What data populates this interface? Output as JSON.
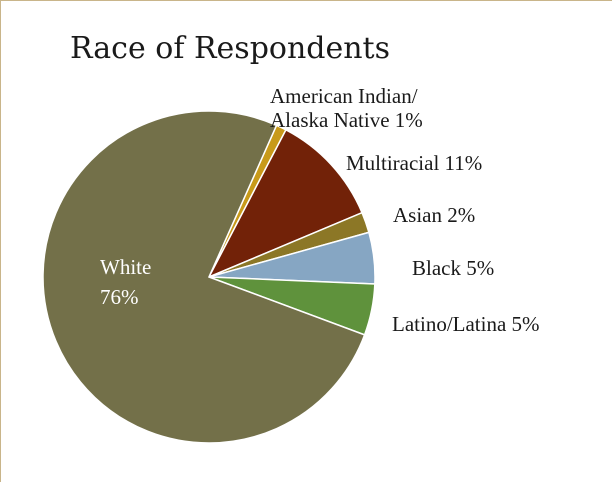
{
  "chart_data": {
    "type": "pie",
    "title": "Race of Respondents",
    "slices": [
      {
        "label": "American Indian/\nAlaska Native",
        "display_label": "American Indian/\nAlaska Native 1%",
        "value": 1,
        "color": "#c89a1a"
      },
      {
        "label": "Multiracial",
        "display_label": "Multiracial 11%",
        "value": 11,
        "color": "#722208"
      },
      {
        "label": "Asian",
        "display_label": "Asian 2%",
        "value": 2,
        "color": "#8c7726"
      },
      {
        "label": "Black",
        "display_label": "Black 5%",
        "value": 5,
        "color": "#86a6c3"
      },
      {
        "label": "Latino/Latina",
        "display_label": "Latino/Latina 5%",
        "value": 5,
        "color": "#5f923c"
      },
      {
        "label": "White",
        "display_label": "White\n76%",
        "value": 76,
        "color": "#737049"
      }
    ],
    "start_angle_deg": -66,
    "legend": "none",
    "data_labels": "outside, except White inside"
  }
}
